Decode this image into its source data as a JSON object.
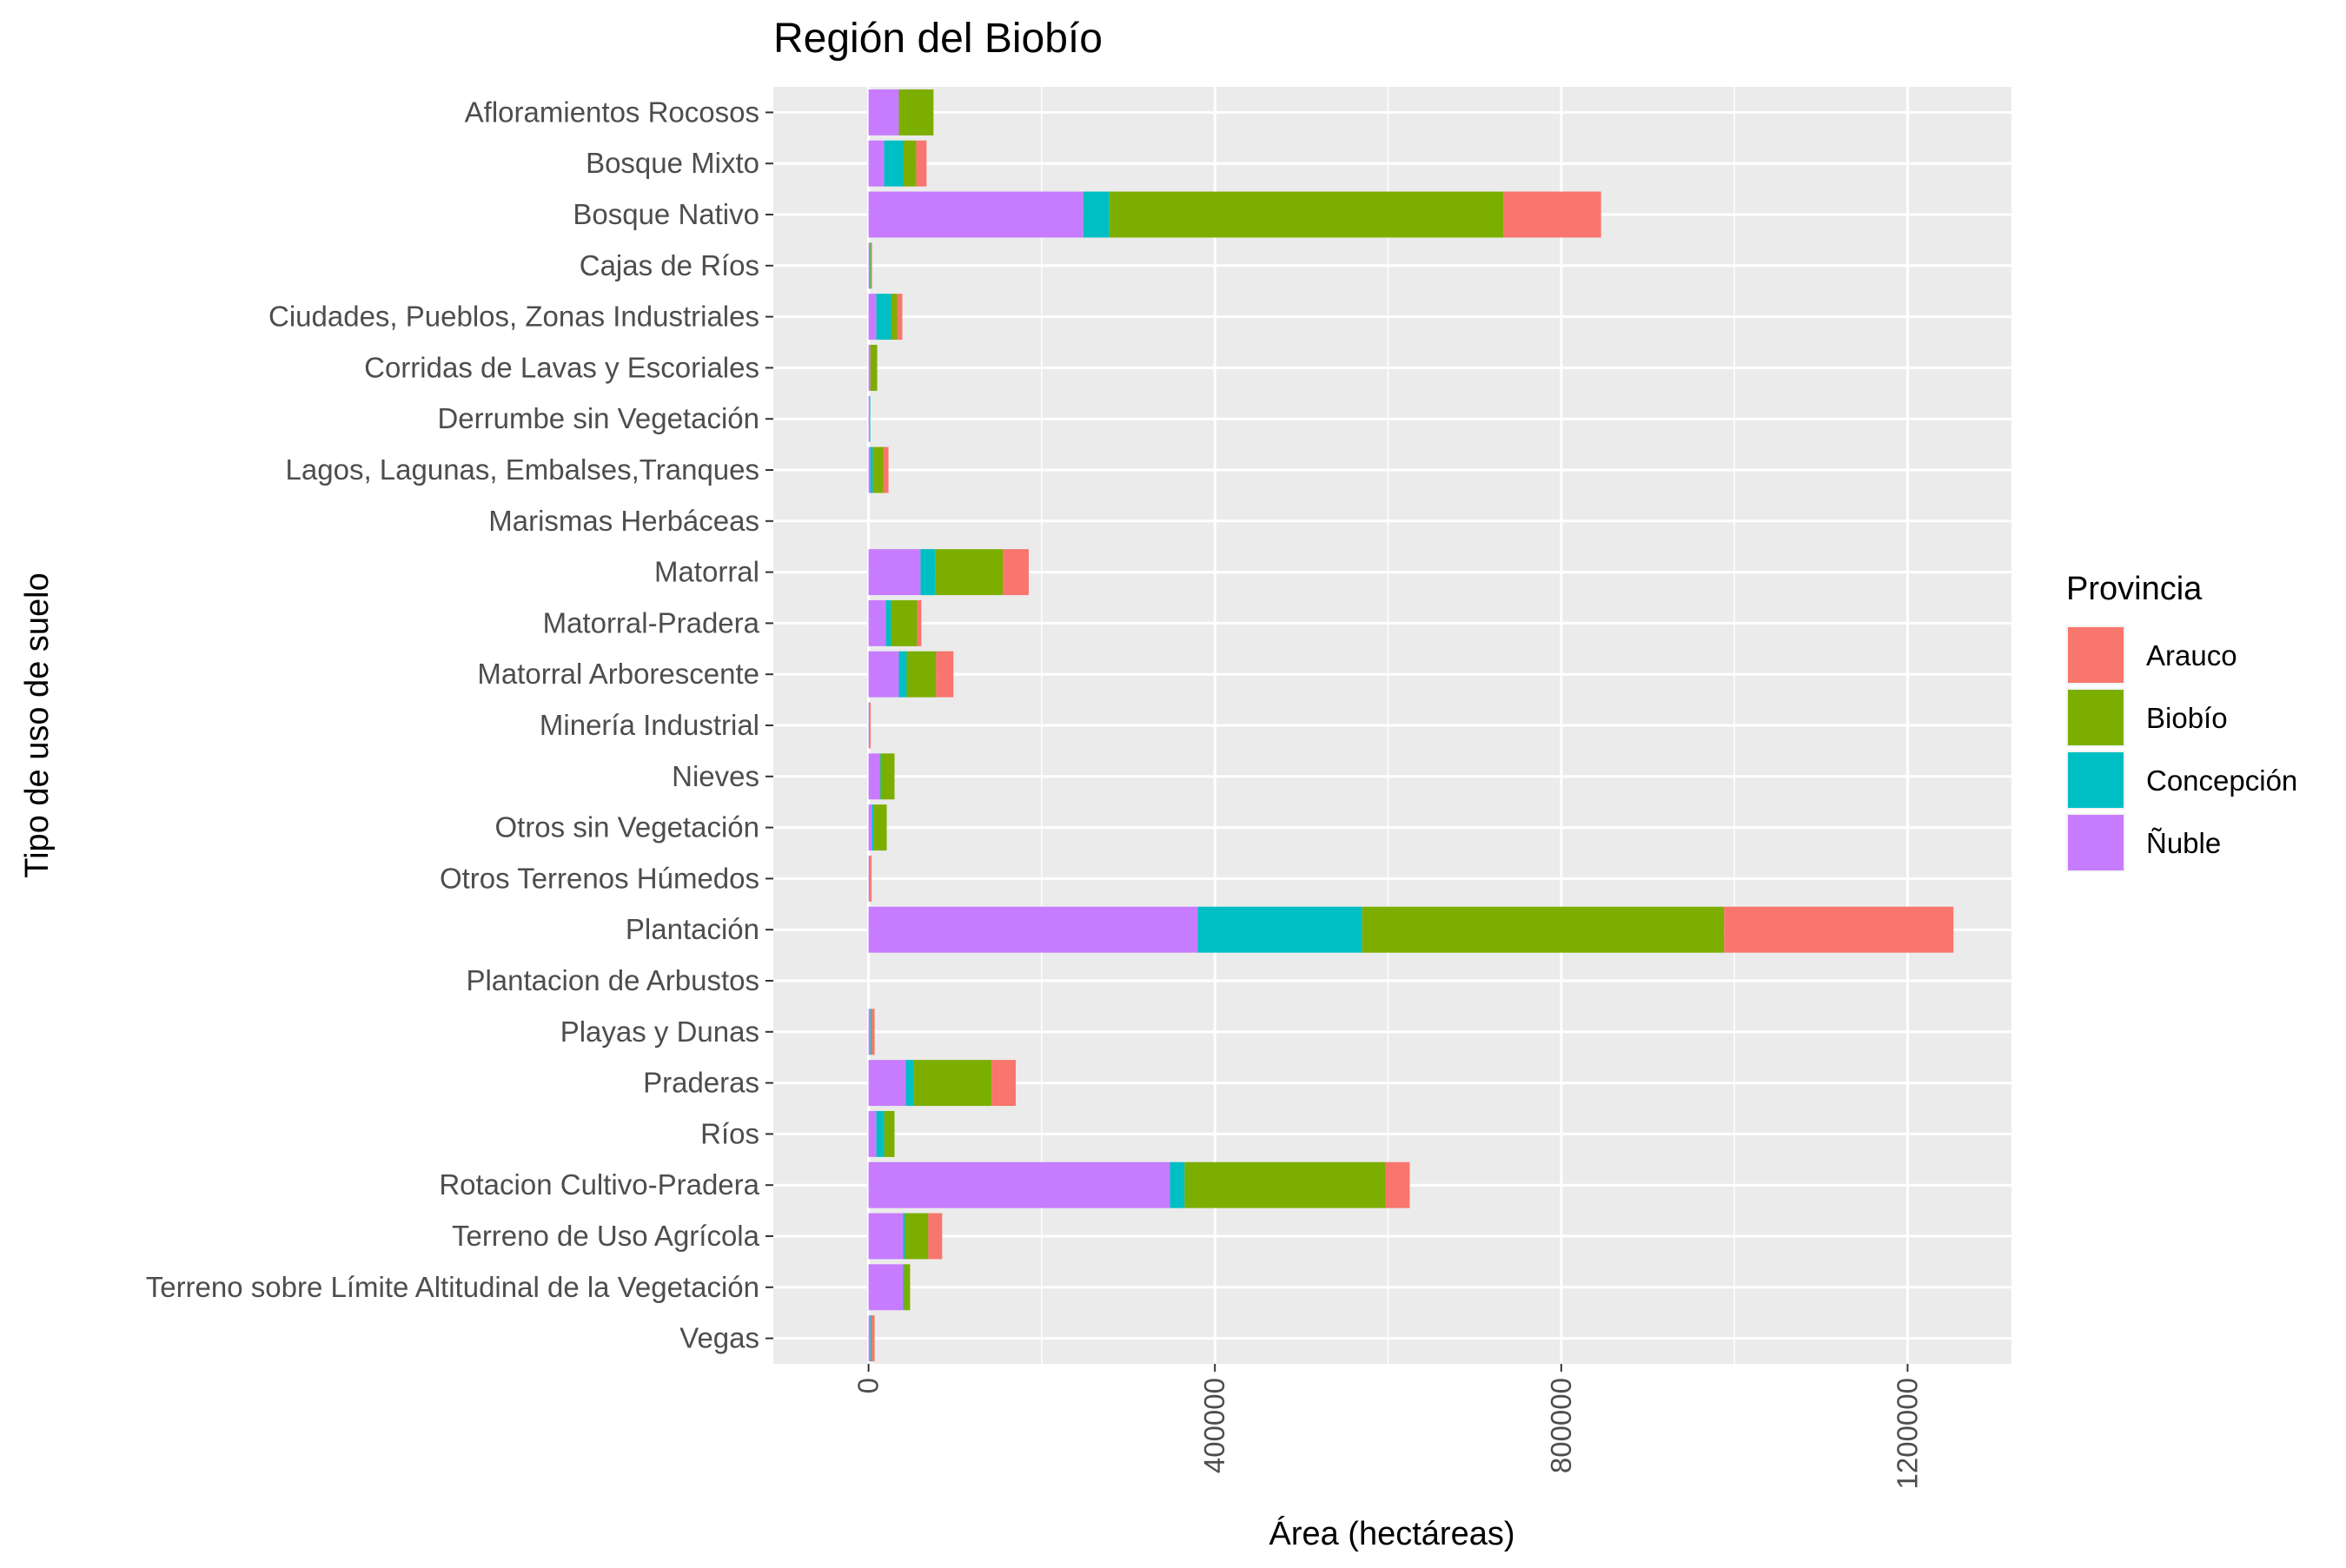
{
  "chart_data": {
    "type": "bar",
    "orientation": "horizontal",
    "stacked": true,
    "title": "Región del Biobío",
    "xlabel": "Área (hectáreas)",
    "ylabel": "Tipo de uso de suelo",
    "xlim": [
      -110000,
      1320000
    ],
    "x_ticks": [
      "0",
      "400000",
      "800000",
      "1200000"
    ],
    "x_tick_values": [
      0,
      400000,
      800000,
      1200000
    ],
    "grid": true,
    "legend": {
      "title": "Provincia",
      "placement": "right"
    },
    "categories": [
      "Vegas",
      "Terreno sobre Límite Altitudinal de la Vegetación",
      "Terreno de Uso Agrícola",
      "Rotacion Cultivo-Pradera",
      "Ríos",
      "Praderas",
      "Playas y Dunas",
      "Plantacion de Arbustos",
      "Plantación",
      "Otros Terrenos Húmedos",
      "Otros sin Vegetación",
      "Nieves",
      "Minería Industrial",
      "Matorral Arborescente",
      "Matorral-Pradera",
      "Matorral",
      "Marismas Herbáceas",
      "Lagos, Lagunas, Embalses,Tranques",
      "Derrumbe sin Vegetación",
      "Corridas de Lavas y Escoriales",
      "Ciudades, Pueblos, Zonas Industriales",
      "Cajas de Ríos",
      "Bosque Nativo",
      "Bosque Mixto",
      "Afloramientos Rocosos"
    ],
    "series": [
      {
        "name": "Ñuble",
        "color": "#C77CFF",
        "values": [
          2000,
          40000,
          40000,
          348000,
          9000,
          43000,
          2000,
          0,
          380000,
          500,
          4000,
          13000,
          500,
          35000,
          20000,
          60000,
          0,
          2000,
          1500,
          2000,
          9000,
          1000,
          248000,
          18000,
          35000
        ]
      },
      {
        "name": "Concepción",
        "color": "#00BFC4",
        "values": [
          1000,
          1000,
          2000,
          17000,
          9000,
          9000,
          1000,
          0,
          190000,
          500,
          2000,
          1000,
          500,
          9000,
          6000,
          17000,
          0,
          3000,
          500,
          0,
          17000,
          1000,
          30000,
          22000,
          0
        ]
      },
      {
        "name": "Biobío",
        "color": "#7CAE00",
        "values": [
          1000,
          7000,
          27000,
          232000,
          12000,
          90000,
          1000,
          0,
          418000,
          500,
          15000,
          16000,
          500,
          34000,
          30000,
          78000,
          0,
          12000,
          0,
          8000,
          7000,
          1000,
          455000,
          15000,
          40000
        ]
      },
      {
        "name": "Arauco",
        "color": "#F8766D",
        "values": [
          3000,
          0,
          16000,
          28000,
          0,
          28000,
          3000,
          0,
          265000,
          2000,
          0,
          0,
          1000,
          20000,
          5000,
          30000,
          0,
          6000,
          0,
          0,
          6000,
          1000,
          113000,
          12000,
          0
        ]
      }
    ],
    "legend_order": [
      "Arauco",
      "Biobío",
      "Concepción",
      "Ñuble"
    ]
  }
}
